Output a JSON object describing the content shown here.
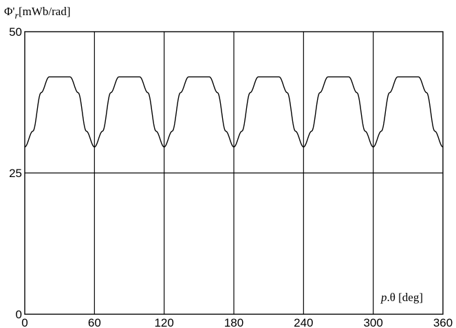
{
  "chart_data": {
    "type": "line",
    "title": "",
    "ylabel": "Φ'r[mWb/rad]",
    "ylabel_parts": {
      "symbol": "Φ'",
      "subscript": "r",
      "unit": "[mWb/rad]"
    },
    "xlabel": "p.θ [deg]",
    "xlabel_parts": {
      "italic": "p",
      "rest": ".θ [deg]"
    },
    "xlim": [
      0,
      360
    ],
    "ylim": [
      0,
      50
    ],
    "x_ticks": [
      0,
      60,
      120,
      180,
      240,
      300,
      360
    ],
    "x_tick_labels": [
      "0",
      "60",
      "120",
      "180",
      "240",
      "300",
      "360"
    ],
    "y_ticks": [
      0,
      25,
      50
    ],
    "y_tick_labels": [
      "0",
      "25",
      "50"
    ],
    "grid": true,
    "legend": "none",
    "series": [
      {
        "waveform": "periodic trapezoid with cosine edges",
        "period": 60,
        "min": 29.6,
        "max": 42,
        "x": [
          0,
          7,
          14,
          21,
          39,
          46,
          53,
          60,
          67,
          74,
          81,
          99,
          106,
          113,
          120,
          127,
          134,
          141,
          159,
          166,
          173,
          180,
          187,
          194,
          201,
          219,
          226,
          233,
          240,
          247,
          254,
          261,
          279,
          286,
          293,
          300,
          307,
          314,
          321,
          339,
          346,
          353,
          360
        ],
        "y": [
          29.6,
          32.4,
          39.2,
          42,
          42,
          39.2,
          32.4,
          29.6,
          32.4,
          39.2,
          42,
          42,
          39.2,
          32.4,
          29.6,
          32.4,
          39.2,
          42,
          42,
          39.2,
          32.4,
          29.6,
          32.4,
          39.2,
          42,
          42,
          39.2,
          32.4,
          29.6,
          32.4,
          39.2,
          42,
          42,
          39.2,
          32.4,
          29.6,
          32.4,
          39.2,
          42,
          42,
          39.2,
          32.4,
          29.6
        ]
      }
    ],
    "colors": {
      "line": "#000000",
      "grid": "#000000",
      "frame": "#000000",
      "background": "#ffffff"
    }
  }
}
